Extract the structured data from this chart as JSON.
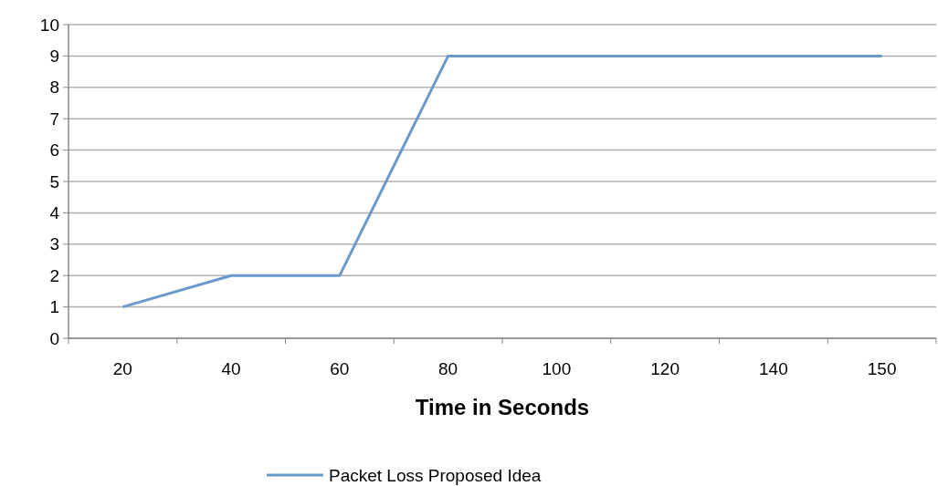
{
  "chart_data": {
    "type": "line",
    "xlabel": "Time in Seconds",
    "categories": [
      "20",
      "40",
      "60",
      "80",
      "100",
      "120",
      "140",
      "150"
    ],
    "series": [
      {
        "name": "Packet Loss Proposed Idea",
        "color": "#6a9acb",
        "values": [
          1,
          2,
          2,
          9,
          9,
          9,
          9,
          9
        ]
      }
    ],
    "ylim": [
      0,
      10
    ],
    "yticks": [
      0,
      1,
      2,
      3,
      4,
      5,
      6,
      7,
      8,
      9,
      10
    ],
    "grid": "y",
    "legend": "bottom",
    "marker": "none",
    "line_style": "solid"
  }
}
